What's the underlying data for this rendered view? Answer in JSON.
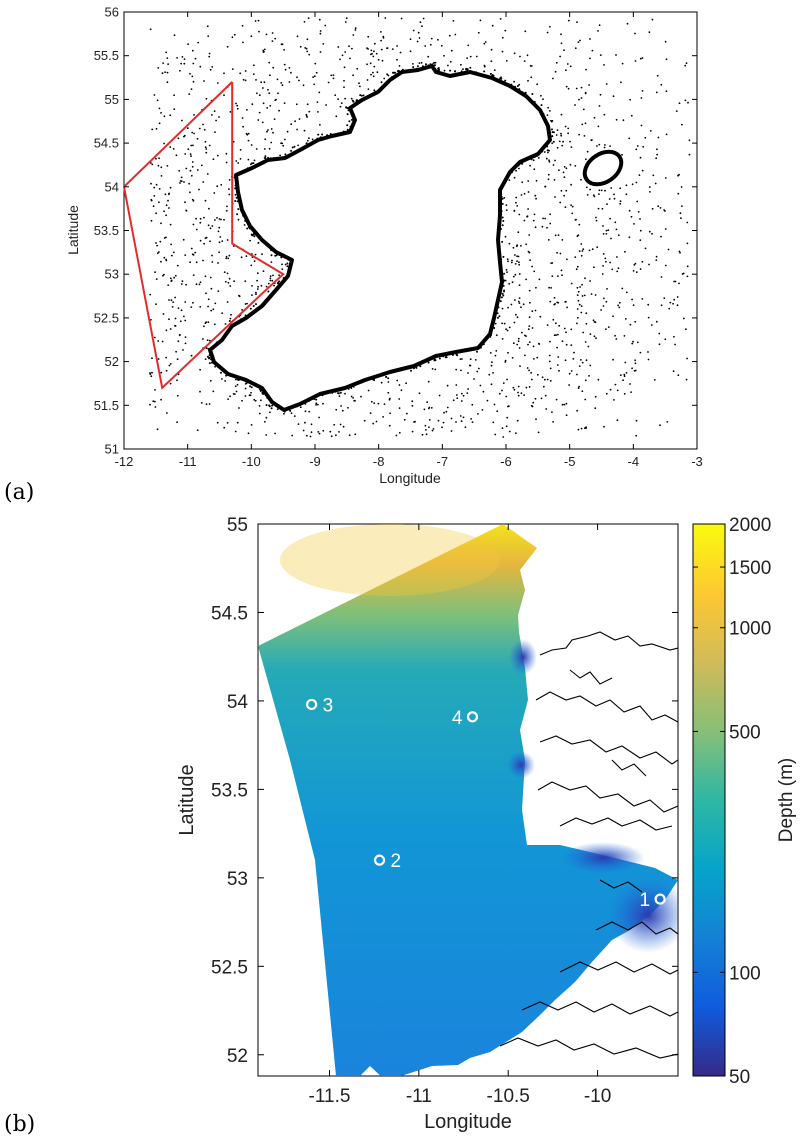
{
  "panels": [
    {
      "label": "(a)"
    },
    {
      "label": "(b)"
    }
  ],
  "chart_data": [
    {
      "type": "scatter",
      "description_label": "(a)",
      "xlabel": "Longitude",
      "ylabel": "Latitude",
      "xlim": [
        -12,
        -3
      ],
      "ylim": [
        51,
        56
      ],
      "xticks": [
        -12,
        -11,
        -10,
        -9,
        -8,
        -7,
        -6,
        -5,
        -4,
        -3
      ],
      "yticks": [
        51,
        51.5,
        52,
        52.5,
        53,
        53.5,
        54,
        54.5,
        55,
        55.5,
        56
      ],
      "ytick_labels": [
        "51",
        "51.5",
        "52",
        "52.5",
        "53",
        "53.5",
        "54",
        "54.5",
        "55",
        "55.5",
        "56"
      ],
      "xtick_labels": [
        "-12",
        "-11",
        "-10",
        "-9",
        "-8",
        "-7",
        "-6",
        "-5",
        "-4",
        "-3"
      ],
      "grid": false,
      "point_color": "#000000",
      "boundary_color": "#e32b2b",
      "region_boundary": [
        [
          -10.3,
          55.2
        ],
        [
          -12.0,
          54.0
        ],
        [
          -11.4,
          51.7
        ],
        [
          -9.8,
          52.8
        ],
        [
          -9.5,
          53.0
        ],
        [
          -10.3,
          53.35
        ],
        [
          -10.3,
          55.2
        ]
      ]
    },
    {
      "type": "heatmap",
      "description_label": "(b)",
      "xlabel": "Longitude",
      "ylabel": "Latitude",
      "xlim": [
        -11.9,
        -9.55
      ],
      "ylim": [
        51.88,
        55
      ],
      "xticks": [
        -11.5,
        -11,
        -10.5,
        -10
      ],
      "xtick_labels": [
        "-11.5",
        "-11",
        "-10.5",
        "-10"
      ],
      "yticks": [
        52,
        52.5,
        53,
        53.5,
        54,
        54.5,
        55
      ],
      "ytick_labels": [
        "52",
        "52.5",
        "53",
        "53.5",
        "54",
        "54.5",
        "55"
      ],
      "colorbar": {
        "label": "Depth (m)",
        "scale": "log",
        "range": [
          50,
          2000
        ],
        "ticks": [
          50,
          100,
          500,
          1000,
          1500,
          2000
        ],
        "tick_labels": [
          "50",
          "100",
          "500",
          "1000",
          "1500",
          "2000"
        ],
        "colormap": [
          "#352a87",
          "#0f5cdd",
          "#1481d6",
          "#06a4ca",
          "#2eb7a4",
          "#87bf77",
          "#d1bb59",
          "#fec832",
          "#f9fb0e"
        ]
      },
      "stations": [
        {
          "label": "1",
          "lon": -9.65,
          "lat": 52.88
        },
        {
          "label": "2",
          "lon": -11.22,
          "lat": 53.1
        },
        {
          "label": "3",
          "lon": -11.6,
          "lat": 53.98
        },
        {
          "label": "4",
          "lon": -10.7,
          "lat": 53.91
        }
      ]
    }
  ]
}
